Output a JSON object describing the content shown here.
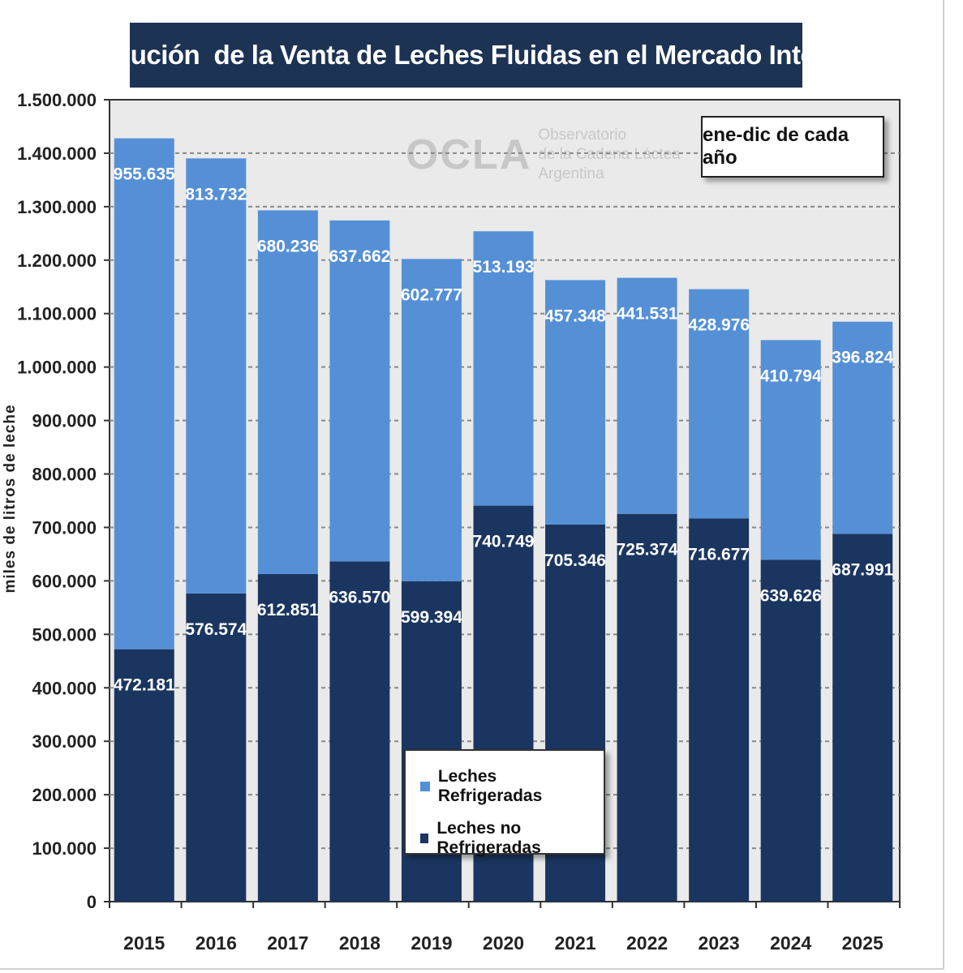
{
  "title": "Evolución  de la Venta de Leches Fluidas en el Mercado Interno",
  "period_label": "ene-dic de cada año",
  "watermark": {
    "logo": "OCLA",
    "line1": "Observatorio",
    "line2": "de la Cadena Láctea",
    "line3": "Argentina"
  },
  "colors": {
    "refrigeradas": "#5590d6",
    "no_refrigeradas": "#1a3660",
    "title_bg": "#1c3354",
    "plot_bg": "#eaeaea"
  },
  "chart_data": {
    "type": "bar",
    "stacked": true,
    "ylabel": "miles de litros de leche",
    "xlabel": "",
    "ylim": [
      0,
      1500000
    ],
    "yticks": [
      0,
      100000,
      200000,
      300000,
      400000,
      500000,
      600000,
      700000,
      800000,
      900000,
      1000000,
      1100000,
      1200000,
      1300000,
      1400000,
      1500000
    ],
    "ytick_labels": [
      "0",
      "100.000",
      "200.000",
      "300.000",
      "400.000",
      "500.000",
      "600.000",
      "700.000",
      "800.000",
      "900.000",
      "1.000.000",
      "1.100.000",
      "1.200.000",
      "1.300.000",
      "1.400.000",
      "1.500.000"
    ],
    "grid": true,
    "legend_position": "bottom-center",
    "categories": [
      "2015",
      "2016",
      "2017",
      "2018",
      "2019",
      "2020",
      "2021",
      "2022",
      "2023",
      "2024",
      "2025"
    ],
    "series": [
      {
        "name": "Leches no Refrigeradas",
        "values": [
          472181,
          576574,
          612851,
          636570,
          599394,
          740749,
          705346,
          725374,
          716677,
          639626,
          687991
        ],
        "labels": [
          "472.181",
          "576.574",
          "612.851",
          "636.570",
          "599.394",
          "740.749",
          "705.346",
          "725.374",
          "716.677",
          "639.626",
          "687.991"
        ]
      },
      {
        "name": "Leches Refrigeradas",
        "values": [
          955635,
          813732,
          680236,
          637662,
          602777,
          513193,
          457348,
          441531,
          428976,
          410794,
          396824
        ],
        "labels": [
          "955.635",
          "813.732",
          "680.236",
          "637.662",
          "602.777",
          "513.193",
          "457.348",
          "441.531",
          "428.976",
          "410.794",
          "396.824"
        ]
      }
    ]
  }
}
